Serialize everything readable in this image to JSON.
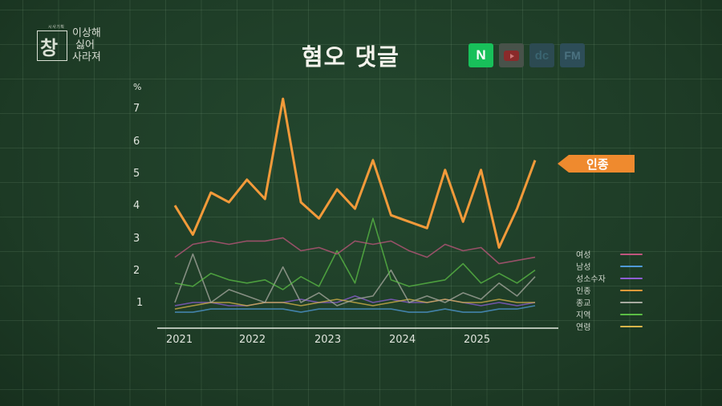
{
  "program": {
    "subtitle": "시사기획",
    "name": "창",
    "slogan_lines": [
      "이상해",
      "싫어",
      "사라져"
    ]
  },
  "header": {
    "title": "혐오 댓글",
    "source_icons": [
      {
        "name": "naver-icon",
        "label": "N",
        "active": true
      },
      {
        "name": "youtube-icon",
        "label": "",
        "active": false
      },
      {
        "name": "dcinside-icon",
        "label": "dc",
        "active": false
      },
      {
        "name": "fmkorea-icon",
        "label": "FM",
        "active": false
      }
    ]
  },
  "callout": {
    "label": "인종",
    "color": "#ef8a2e"
  },
  "chart_data": {
    "type": "line",
    "title": "혐오 댓글",
    "ylabel": "%",
    "xlabel": "",
    "ylim": [
      0.5,
      7.5
    ],
    "yticks": [
      "1",
      "2",
      "3",
      "4",
      "5",
      "6",
      "7"
    ],
    "x_ticks": [
      "2021",
      "2022",
      "2023",
      "2024",
      "2025"
    ],
    "grid": true,
    "legend_position": "right",
    "x": [
      "2021-01",
      "2021-04",
      "2021-07",
      "2021-10",
      "2022-01",
      "2022-03",
      "2022-04",
      "2022-07",
      "2022-10",
      "2023-01",
      "2023-04",
      "2023-07",
      "2023-10",
      "2024-01",
      "2024-04",
      "2024-07",
      "2024-10",
      "2025-01",
      "2025-04",
      "2025-07",
      "2025-10"
    ],
    "series": [
      {
        "name": "여성",
        "color": "#c0557e",
        "values": [
          2.4,
          2.8,
          2.9,
          2.8,
          2.9,
          2.9,
          3.0,
          2.6,
          2.7,
          2.5,
          2.9,
          2.8,
          2.9,
          2.6,
          2.4,
          2.8,
          2.6,
          2.7,
          2.2,
          2.3,
          2.4
        ]
      },
      {
        "name": "남성",
        "color": "#4f9ad6",
        "values": [
          0.7,
          0.7,
          0.8,
          0.8,
          0.8,
          0.8,
          0.8,
          0.7,
          0.8,
          0.8,
          0.8,
          0.8,
          0.8,
          0.7,
          0.7,
          0.8,
          0.7,
          0.7,
          0.8,
          0.8,
          0.9
        ]
      },
      {
        "name": "성소수자",
        "color": "#8e5ed4",
        "values": [
          0.9,
          1.0,
          1.0,
          0.9,
          0.9,
          1.0,
          1.0,
          1.1,
          1.0,
          1.0,
          1.2,
          1.0,
          1.1,
          1.0,
          1.0,
          1.1,
          1.0,
          0.9,
          1.0,
          0.9,
          1.0
        ]
      },
      {
        "name": "인종",
        "color": "#f29a3a",
        "values": [
          4.0,
          3.1,
          4.4,
          4.1,
          4.8,
          4.2,
          7.3,
          4.1,
          3.6,
          4.5,
          3.9,
          5.4,
          3.7,
          3.5,
          3.3,
          5.1,
          3.5,
          5.1,
          2.7,
          3.9,
          5.4
        ]
      },
      {
        "name": "종교",
        "color": "#a8aaa0",
        "values": [
          1.0,
          2.5,
          1.0,
          1.4,
          1.2,
          1.0,
          2.1,
          1.0,
          1.3,
          0.9,
          1.1,
          1.2,
          2.0,
          1.0,
          1.2,
          1.0,
          1.3,
          1.1,
          1.6,
          1.2,
          1.8
        ]
      },
      {
        "name": "지역",
        "color": "#5bbd45",
        "values": [
          1.6,
          1.5,
          1.9,
          1.7,
          1.6,
          1.7,
          1.4,
          1.8,
          1.5,
          2.6,
          1.6,
          3.6,
          1.7,
          1.5,
          1.6,
          1.7,
          2.2,
          1.6,
          1.9,
          1.6,
          2.0
        ]
      },
      {
        "name": "연령",
        "color": "#d9b54a",
        "values": [
          0.8,
          0.9,
          1.0,
          1.0,
          0.9,
          1.0,
          1.0,
          0.9,
          1.0,
          1.1,
          1.0,
          0.9,
          1.0,
          1.1,
          1.0,
          1.1,
          1.0,
          1.0,
          1.1,
          1.0,
          1.0
        ]
      }
    ]
  }
}
